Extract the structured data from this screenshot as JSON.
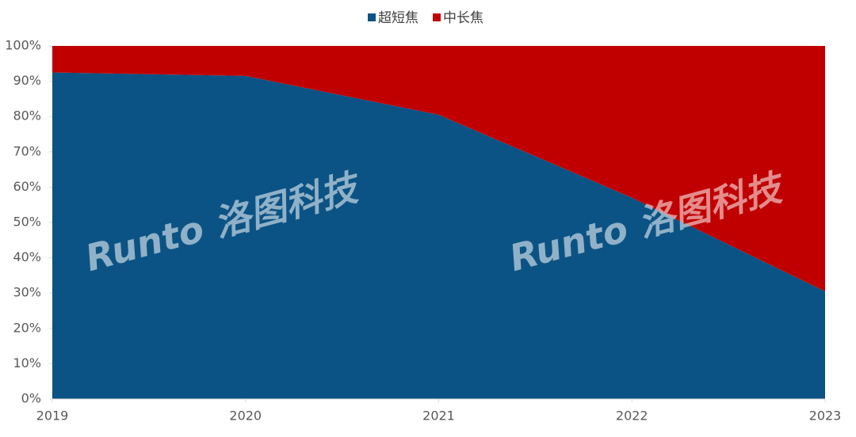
{
  "chart_data": {
    "type": "stacked-area",
    "x": [
      2019,
      2020,
      2021,
      2022,
      2023
    ],
    "xlim": [
      2019,
      2023
    ],
    "xticks": [
      2019,
      2020,
      2021,
      2022,
      2023
    ],
    "series": [
      {
        "name": "超短焦",
        "color": "#0b5384",
        "values": [
          92.5,
          91.5,
          80.5,
          57,
          30.5
        ]
      },
      {
        "name": "中长焦",
        "color": "#c00000",
        "values": [
          7.5,
          8.5,
          19.5,
          43,
          69.5
        ]
      }
    ],
    "ylim": [
      0,
      100
    ],
    "yticks": [
      {
        "value": 0,
        "label": "0%"
      },
      {
        "value": 10,
        "label": "10%"
      },
      {
        "value": 20,
        "label": "20%"
      },
      {
        "value": 30,
        "label": "30%"
      },
      {
        "value": 40,
        "label": "40%"
      },
      {
        "value": 50,
        "label": "50%"
      },
      {
        "value": 60,
        "label": "60%"
      },
      {
        "value": 70,
        "label": "70%"
      },
      {
        "value": 80,
        "label": "80%"
      },
      {
        "value": 90,
        "label": "90%"
      },
      {
        "value": 100,
        "label": "100%"
      }
    ],
    "legend": "top",
    "watermark": "Runto 洛图科技"
  }
}
